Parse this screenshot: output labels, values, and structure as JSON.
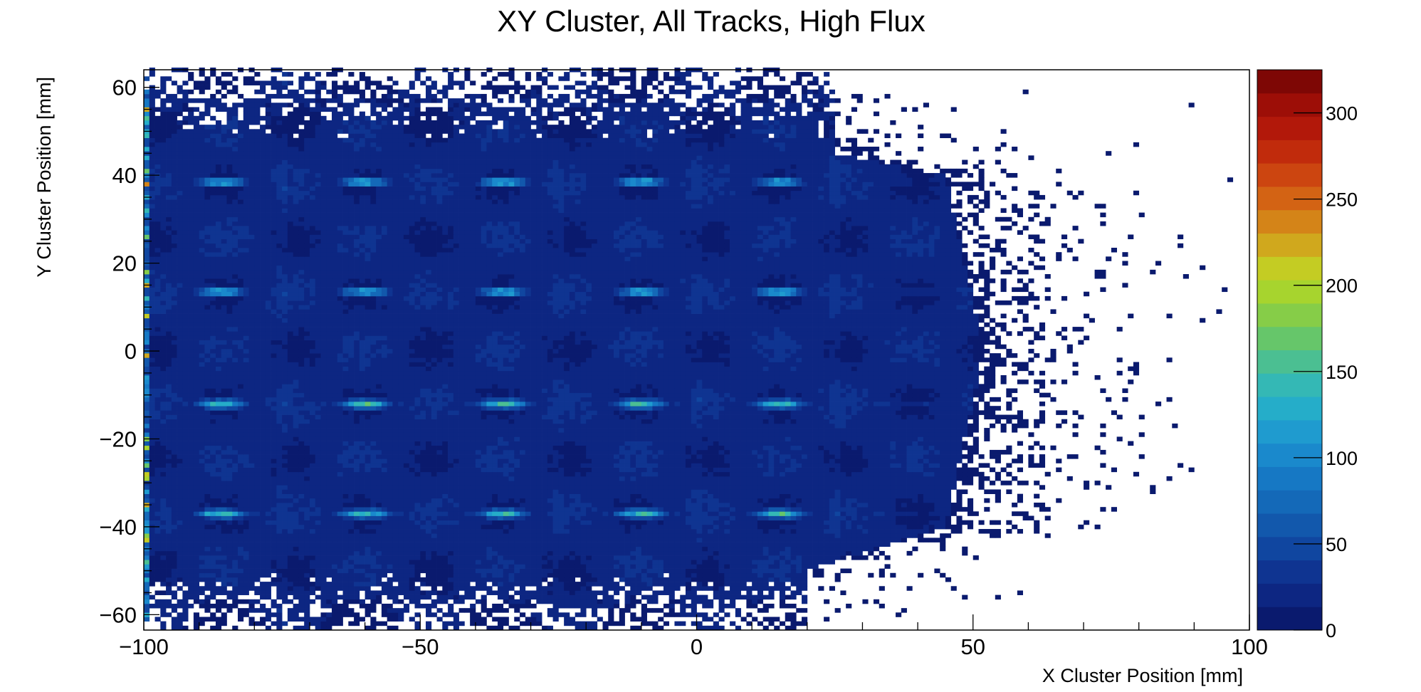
{
  "chart_data": {
    "type": "heatmap",
    "title": "XY Cluster, All Tracks, High Flux",
    "xlabel": "X Cluster Position [mm]",
    "ylabel": "Y Cluster Position [mm]",
    "xlim": [
      -100,
      100
    ],
    "ylim": [
      -63.5,
      64
    ],
    "zlim": [
      0,
      325
    ],
    "x_ticks": [
      -100,
      -50,
      0,
      50,
      100
    ],
    "x_tick_labels": [
      "−100",
      "−50",
      "0",
      "50",
      "100"
    ],
    "y_ticks": [
      -60,
      -40,
      -20,
      0,
      20,
      40,
      60
    ],
    "y_tick_labels": [
      "−60",
      "−40",
      "−20",
      "0",
      "20",
      "40",
      "60"
    ],
    "z_ticks": [
      0,
      50,
      100,
      150,
      200,
      250,
      300
    ],
    "z_tick_labels": [
      "0",
      "50",
      "100",
      "150",
      "200",
      "250",
      "300"
    ],
    "grid": false,
    "colorbar": "right",
    "colors": {
      "palette": [
        "#0a1a6e",
        "#0d2682",
        "#0f3491",
        "#1046a0",
        "#1258ac",
        "#1469b8",
        "#1678c4",
        "#1a89cc",
        "#1f9bcf",
        "#25adc9",
        "#34b8b5",
        "#4bbf92",
        "#66c66a",
        "#86cd48",
        "#a7d42e",
        "#c4cc23",
        "#d0a81d",
        "#d48418",
        "#d36314",
        "#cc4510",
        "#c12b0c",
        "#b2180a",
        "#9d0e07",
        "#7e0705"
      ],
      "background": "#ffffff",
      "frame": "#000000"
    },
    "features": {
      "bright_rows_y_mm": [
        38.5,
        13.5,
        -12,
        -37
      ],
      "hot_spot_x_mm": [
        -86,
        -60,
        -35,
        -10,
        15
      ],
      "dense_region_x_edge_mm": [
        {
          "y": 45,
          "x": 25
        },
        {
          "y": 40,
          "x": 45
        },
        {
          "y": 0,
          "x": 52
        },
        {
          "y": -40,
          "x": 45
        },
        {
          "y": -50,
          "x": 20
        }
      ],
      "typical_core_counts": 20,
      "hot_spot_peak_counts": 150,
      "edge_column_peak_counts": 250
    }
  }
}
